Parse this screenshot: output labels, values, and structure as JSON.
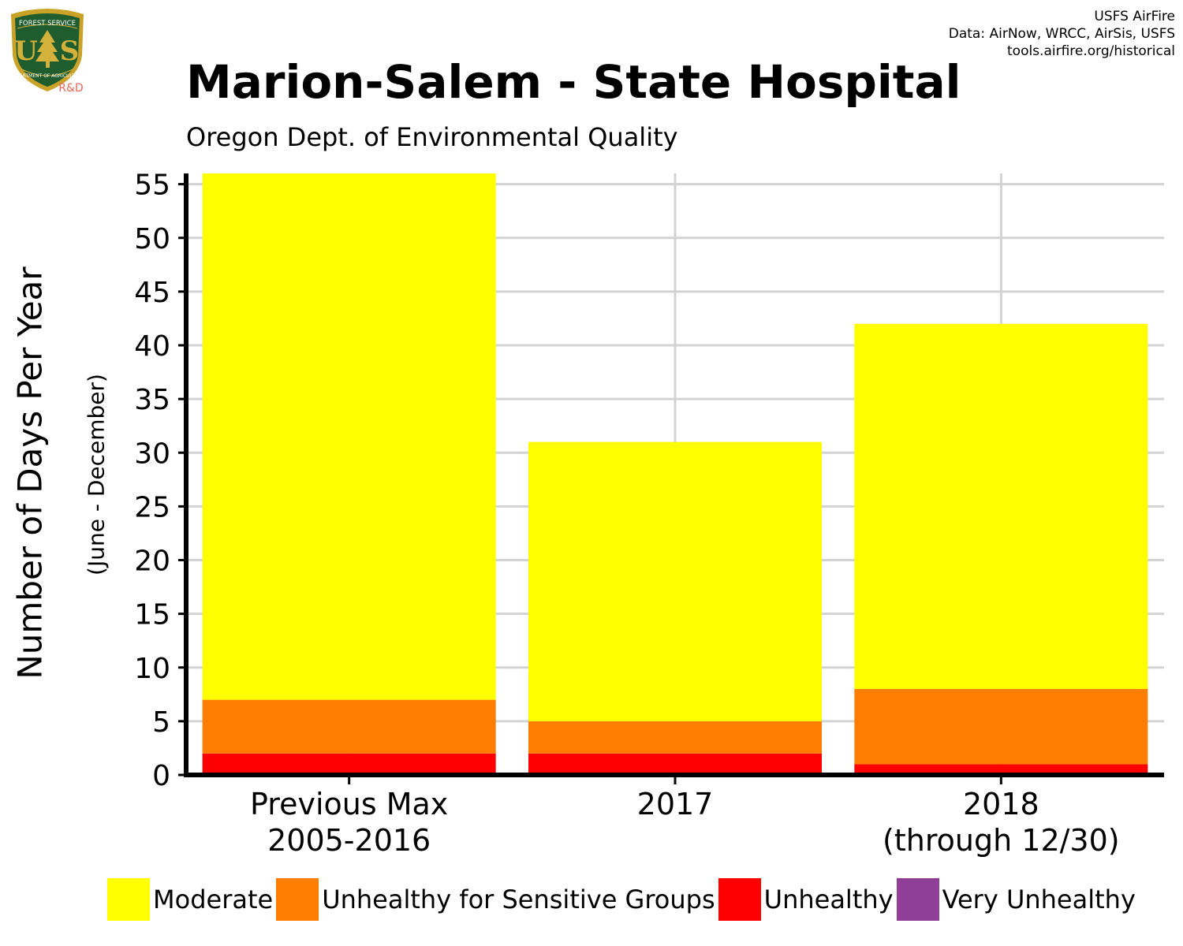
{
  "logo": {
    "icon": "usfs-shield-icon",
    "top_text": "FOREST SERVICE",
    "letters": "U S",
    "bottom_text": "DEPARTMENT OF AGRICULTURE",
    "tag": "R&D",
    "colors": {
      "shield": "#1f5c2e",
      "border": "#c9a227",
      "gold": "#d4b13a",
      "tag": "#e8685a"
    }
  },
  "credits": {
    "line1": "USFS AirFire",
    "line2": "Data: AirNow, WRCC, AirSis, USFS",
    "line3": "tools.airfire.org/historical"
  },
  "chart_data": {
    "type": "bar",
    "stacked": true,
    "title": "Marion-Salem - State Hospital",
    "subtitle": "Oregon Dept. of Environmental Quality",
    "ylabel": "Number of Days Per Year",
    "ylabel_secondary": "(June - December)",
    "xlabel": "",
    "categories": [
      [
        "Previous Max",
        "2005-2016"
      ],
      [
        "2017"
      ],
      [
        "2018",
        "(through 12/30)"
      ]
    ],
    "series": [
      {
        "name": "Unhealthy",
        "color": "#ff0000",
        "values": [
          2,
          2,
          1
        ]
      },
      {
        "name": "Unhealthy for Sensitive Groups",
        "color": "#ff7e00",
        "values": [
          5,
          3,
          7
        ]
      },
      {
        "name": "Moderate",
        "color": "#ffff00",
        "values": [
          49,
          26,
          34
        ]
      },
      {
        "name": "Very Unhealthy",
        "color": "#8f3f97",
        "values": [
          0,
          0,
          0
        ]
      }
    ],
    "ylim": [
      0,
      56
    ],
    "yticks": [
      0,
      5,
      10,
      15,
      20,
      25,
      30,
      35,
      40,
      45,
      50,
      55
    ],
    "grid": true,
    "gridColor": "#d3d3d3",
    "legend_position": "bottom",
    "legend": [
      {
        "label": "Moderate",
        "color": "#ffff00"
      },
      {
        "label": "Unhealthy for Sensitive Groups",
        "color": "#ff7e00"
      },
      {
        "label": "Unhealthy",
        "color": "#ff0000"
      },
      {
        "label": "Very Unhealthy",
        "color": "#8f3f97"
      }
    ]
  }
}
